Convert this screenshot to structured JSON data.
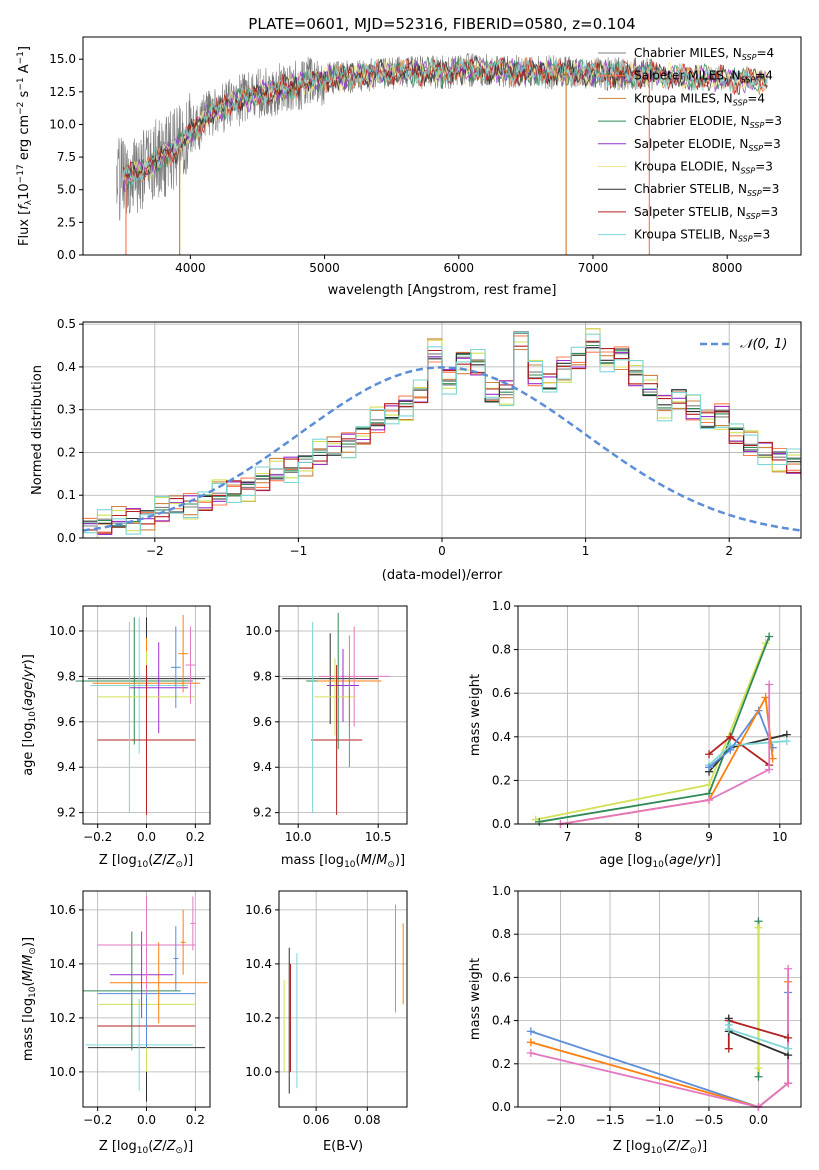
{
  "chart_data": [
    {
      "type": "line",
      "id": "spectrum",
      "title": "PLATE=0601, MJD=52316, FIBERID=0580, z=0.104",
      "xlabel": "wavelength [Angstrom, rest frame]",
      "ylabel": "Flux [f_λ10^-17 erg cm^-2 s^-1 A^-1]",
      "xlim": [
        3200,
        8550
      ],
      "ylim": [
        0,
        16.7
      ],
      "xticks": [
        4000,
        5000,
        6000,
        7000,
        8000
      ],
      "yticks": [
        0.0,
        2.5,
        5.0,
        7.5,
        10.0,
        12.5,
        15.0
      ],
      "grid": false,
      "legend": "right",
      "continuum": {
        "x": [
          3450,
          3600,
          3750,
          3900,
          4000,
          4150,
          4300,
          4500,
          4700,
          4900,
          5100,
          5300,
          5500,
          5700,
          5900,
          6100,
          6300,
          6500,
          6700,
          6900,
          7100,
          7300,
          7500,
          7700,
          7900,
          8100,
          8300
        ],
        "y": [
          5.8,
          6.3,
          7.2,
          8.2,
          9.4,
          10.8,
          11.6,
          12.3,
          12.8,
          13.3,
          13.6,
          13.8,
          13.9,
          14.0,
          14.0,
          14.2,
          14.1,
          14.0,
          14.0,
          14.0,
          13.9,
          13.8,
          13.8,
          13.6,
          13.5,
          13.4,
          13.4
        ]
      },
      "observed_x_range": [
        3450,
        7460
      ],
      "model_x_range": [
        3500,
        8300
      ],
      "series": [
        {
          "name": "Chabrier MILES, N_SSP=4",
          "color": "#808080"
        },
        {
          "name": "Salpeter MILES, N_SSP=4",
          "color": "#ff7f50"
        },
        {
          "name": "Kroupa MILES, N_SSP=4",
          "color": "#cd853f"
        },
        {
          "name": "Chabrier ELODIE, N_SSP=3",
          "color": "#2e8b57"
        },
        {
          "name": "Salpeter ELODIE, N_SSP=3",
          "color": "#9932cc"
        },
        {
          "name": "Kroupa ELODIE, N_SSP=3",
          "color": "#f0e68c"
        },
        {
          "name": "Chabrier STELIB, N_SSP=3",
          "color": "#2f2f2f"
        },
        {
          "name": "Salpeter STELIB, N_SSP=3",
          "color": "#b22222"
        },
        {
          "name": "Kroupa STELIB, N_SSP=3",
          "color": "#7fd6d6"
        }
      ]
    },
    {
      "type": "line",
      "id": "residuals",
      "xlabel": "(data-model)/error",
      "ylabel": "Normed distribution",
      "xlim": [
        -2.5,
        2.5
      ],
      "ylim": [
        0,
        0.505
      ],
      "xticks": [
        -2,
        -1,
        0,
        1,
        2
      ],
      "yticks": [
        0.0,
        0.1,
        0.2,
        0.3,
        0.4,
        0.5
      ],
      "grid": true,
      "legend": "top-right",
      "gaussian_label": "𝒩(0, 1)",
      "gaussian_color": "#5b8dd9",
      "bin_width": 0.1,
      "bin_start": -2.5,
      "base_hist": [
        0.028,
        0.032,
        0.038,
        0.045,
        0.052,
        0.062,
        0.07,
        0.08,
        0.088,
        0.1,
        0.11,
        0.12,
        0.134,
        0.15,
        0.165,
        0.18,
        0.195,
        0.205,
        0.222,
        0.245,
        0.27,
        0.29,
        0.31,
        0.34,
        0.43,
        0.37,
        0.42,
        0.405,
        0.33,
        0.345,
        0.47,
        0.38,
        0.36,
        0.4,
        0.42,
        0.455,
        0.42,
        0.43,
        0.38,
        0.345,
        0.31,
        0.335,
        0.3,
        0.27,
        0.29,
        0.245,
        0.215,
        0.2,
        0.19,
        0.175,
        0.15,
        0.14,
        0.125,
        0.12,
        0.1,
        0.085,
        0.075,
        0.065,
        0.055,
        0.045,
        0.07,
        0.05,
        0.04,
        0.035,
        0.03,
        0.028,
        0.025,
        0.02,
        0.018,
        0.015
      ],
      "hist_colors": [
        "#808080",
        "#ff7f50",
        "#cd853f",
        "#2e8b57",
        "#9932cc",
        "#d4e157",
        "#2f2f2f",
        "#b22222",
        "#7fd6d6"
      ]
    },
    {
      "type": "scatter",
      "id": "age-vs-z",
      "xlabel": "Z [log10(Z/Z⊙)]",
      "ylabel": "age [log10(age/yr)]",
      "xlim": [
        -0.26,
        0.26
      ],
      "ylim": [
        9.15,
        10.11
      ],
      "xticks": [
        -0.2,
        0.0,
        0.2
      ],
      "yticks": [
        9.2,
        9.4,
        9.6,
        9.8,
        10.0
      ],
      "grid": true,
      "errorbars": [
        {
          "x": 0.0,
          "xerr": 0.24,
          "y": 9.79,
          "yerr": 0.27,
          "color": "#2f2f2f"
        },
        {
          "x": -0.05,
          "xerr": 0.24,
          "y": 9.78,
          "yerr": 0.28,
          "color": "#2e8b57"
        },
        {
          "x": 0.0,
          "xerr": 0.22,
          "y": 9.77,
          "yerr": 0.2,
          "color": "#ff7f0e"
        },
        {
          "x": -0.03,
          "xerr": 0.2,
          "y": 9.76,
          "yerr": 0.3,
          "color": "#7fd6d6"
        },
        {
          "x": 0.05,
          "xerr": 0.12,
          "y": 9.75,
          "yerr": 0.2,
          "color": "#9932cc"
        },
        {
          "x": 0.0,
          "xerr": 0.2,
          "y": 9.71,
          "yerr": 0.2,
          "color": "#d4e157"
        },
        {
          "x": 0.0,
          "xerr": 0.2,
          "y": 9.52,
          "yerr": 0.33,
          "color": "#b22222"
        },
        {
          "x": 0.12,
          "xerr": 0.02,
          "y": 9.84,
          "yerr": 0.18,
          "color": "#5b8dd9"
        },
        {
          "x": 0.15,
          "xerr": 0.02,
          "y": 9.9,
          "yerr": 0.17,
          "color": "#ff7f0e"
        },
        {
          "x": 0.18,
          "xerr": 0.02,
          "y": 9.85,
          "yerr": 0.17,
          "color": "#e377c2"
        },
        {
          "x": -0.07,
          "xerr": 0.0,
          "y": 9.62,
          "yerr": 0.42,
          "color": "#7fd6d6"
        }
      ]
    },
    {
      "type": "scatter",
      "id": "age-vs-mass",
      "xlabel": "mass [log10(M/M⊙)]",
      "xlim": [
        9.88,
        10.68
      ],
      "ylim": [
        9.15,
        10.11
      ],
      "xticks": [
        10.0,
        10.5
      ],
      "yticks": [
        9.2,
        9.4,
        9.6,
        9.8,
        10.0
      ],
      "grid": true,
      "errorbars": [
        {
          "x": 10.2,
          "xerr": 0.3,
          "y": 9.79,
          "yerr": 0.2,
          "color": "#2f2f2f"
        },
        {
          "x": 10.25,
          "xerr": 0.2,
          "y": 9.78,
          "yerr": 0.3,
          "color": "#2e8b57"
        },
        {
          "x": 10.32,
          "xerr": 0.2,
          "y": 9.78,
          "yerr": 0.2,
          "color": "#ff7f0e"
        },
        {
          "x": 10.35,
          "xerr": 0.22,
          "y": 9.8,
          "yerr": 0.22,
          "color": "#e377c2"
        },
        {
          "x": 10.28,
          "xerr": 0.1,
          "y": 9.76,
          "yerr": 0.16,
          "color": "#9932cc"
        },
        {
          "x": 10.23,
          "xerr": 0.13,
          "y": 9.71,
          "yerr": 0.17,
          "color": "#d4e157"
        },
        {
          "x": 10.24,
          "xerr": 0.16,
          "y": 9.52,
          "yerr": 0.33,
          "color": "#b22222"
        },
        {
          "x": 10.09,
          "xerr": 0.0,
          "y": 9.62,
          "yerr": 0.42,
          "color": "#7fd6d6"
        },
        {
          "x": 10.32,
          "xerr": 0.0,
          "y": 9.6,
          "yerr": 0.2,
          "color": "#5b8dd9"
        }
      ]
    },
    {
      "type": "line",
      "id": "massweight-vs-age",
      "xlabel": "age [log10(age/yr)]",
      "ylabel": "mass weight",
      "xlim": [
        6.3,
        10.3
      ],
      "ylim": [
        0,
        1
      ],
      "xticks": [
        7,
        8,
        9,
        10
      ],
      "yticks": [
        0.0,
        0.2,
        0.4,
        0.6,
        0.8,
        1.0
      ],
      "grid": true,
      "series": [
        {
          "color": "#d4e157",
          "x": [
            6.55,
            9.0,
            9.8
          ],
          "y": [
            0.02,
            0.18,
            0.83
          ]
        },
        {
          "color": "#2e8b57",
          "x": [
            6.6,
            9.0,
            9.85
          ],
          "y": [
            0.01,
            0.14,
            0.86
          ]
        },
        {
          "color": "#b22222",
          "x": [
            9.0,
            9.3,
            9.85
          ],
          "y": [
            0.32,
            0.4,
            0.27
          ]
        },
        {
          "color": "#2f2f2f",
          "x": [
            9.0,
            9.3,
            10.1
          ],
          "y": [
            0.24,
            0.35,
            0.41
          ]
        },
        {
          "color": "#7fd6d6",
          "x": [
            9.0,
            9.3,
            10.1
          ],
          "y": [
            0.27,
            0.36,
            0.38
          ]
        },
        {
          "color": "#5b8dd9",
          "x": [
            9.0,
            9.3,
            9.7,
            9.9
          ],
          "y": [
            0.26,
            0.34,
            0.52,
            0.35
          ]
        },
        {
          "color": "#ff7f0e",
          "x": [
            6.9,
            9.0,
            9.8,
            9.9
          ],
          "y": [
            0.0,
            0.11,
            0.58,
            0.3
          ]
        },
        {
          "color": "#e377c2",
          "x": [
            6.9,
            9.0,
            9.85,
            9.85
          ],
          "y": [
            0.0,
            0.11,
            0.25,
            0.64
          ]
        }
      ]
    },
    {
      "type": "scatter",
      "id": "mass-vs-z",
      "xlabel": "Z [log10(Z/Z⊙)]",
      "ylabel": "mass [log10(M/M⊙)]",
      "xlim": [
        -0.26,
        0.26
      ],
      "ylim": [
        9.87,
        10.67
      ],
      "xticks": [
        -0.2,
        0.0,
        0.2
      ],
      "yticks": [
        10.0,
        10.2,
        10.4,
        10.6
      ],
      "grid": true,
      "errorbars": [
        {
          "x": 0.0,
          "xerr": 0.24,
          "y": 10.09,
          "yerr": 0.2,
          "color": "#2f2f2f"
        },
        {
          "x": -0.03,
          "xerr": 0.22,
          "y": 10.1,
          "yerr": 0.17,
          "color": "#7fd6d6"
        },
        {
          "x": 0.0,
          "xerr": 0.2,
          "y": 10.17,
          "yerr": 0.1,
          "color": "#b22222"
        },
        {
          "x": 0.0,
          "xerr": 0.2,
          "y": 10.25,
          "yerr": 0.25,
          "color": "#d4e157"
        },
        {
          "x": -0.06,
          "xerr": 0.2,
          "y": 10.3,
          "yerr": 0.22,
          "color": "#2e8b57"
        },
        {
          "x": 0.0,
          "xerr": 0.2,
          "y": 10.29,
          "yerr": 0.2,
          "color": "#5b8dd9"
        },
        {
          "x": 0.05,
          "xerr": 0.2,
          "y": 10.33,
          "yerr": 0.15,
          "color": "#ff7f0e"
        },
        {
          "x": -0.02,
          "xerr": 0.13,
          "y": 10.36,
          "yerr": 0.16,
          "color": "#9932cc"
        },
        {
          "x": 0.0,
          "xerr": 0.2,
          "y": 10.47,
          "yerr": 0.18,
          "color": "#e377c2"
        },
        {
          "x": 0.12,
          "xerr": 0.01,
          "y": 10.42,
          "yerr": 0.12,
          "color": "#5b8dd9"
        },
        {
          "x": 0.15,
          "xerr": 0.01,
          "y": 10.48,
          "yerr": 0.12,
          "color": "#ff7f0e"
        },
        {
          "x": 0.19,
          "xerr": 0.01,
          "y": 10.55,
          "yerr": 0.1,
          "color": "#e377c2"
        }
      ]
    },
    {
      "type": "scatter",
      "id": "mass-vs-ebv",
      "xlabel": "E(B-V)",
      "xlim": [
        0.0455,
        0.0955
      ],
      "ylim": [
        9.87,
        10.67
      ],
      "xticks": [
        0.06,
        0.08
      ],
      "yticks": [
        10.0,
        10.2,
        10.4,
        10.6
      ],
      "grid": true,
      "errorbars": [
        {
          "x": 0.0475,
          "xerr": 0.0,
          "y": 10.17,
          "yerr": 0.17,
          "color": "#d4e157"
        },
        {
          "x": 0.0495,
          "xerr": 0.0,
          "y": 10.19,
          "yerr": 0.27,
          "color": "#2f2f2f"
        },
        {
          "x": 0.05,
          "xerr": 0.0,
          "y": 10.2,
          "yerr": 0.2,
          "color": "#b22222"
        },
        {
          "x": 0.0525,
          "xerr": 0.0,
          "y": 10.19,
          "yerr": 0.25,
          "color": "#7fd6d6"
        },
        {
          "x": 0.091,
          "xerr": 0.0,
          "y": 10.42,
          "yerr": 0.2,
          "color": "#e377c2"
        },
        {
          "x": 0.094,
          "xerr": 0.0,
          "y": 10.4,
          "yerr": 0.15,
          "color": "#ff7f0e"
        }
      ]
    },
    {
      "type": "line",
      "id": "massweight-vs-z",
      "xlabel": "Z [log10(Z/Z⊙)]",
      "ylabel": "mass weight",
      "xlim": [
        -2.43,
        0.43
      ],
      "ylim": [
        0,
        1
      ],
      "xticks": [
        -2.0,
        -1.5,
        -1.0,
        -0.5,
        0.0
      ],
      "yticks": [
        0.0,
        0.2,
        0.4,
        0.6,
        0.8,
        1.0
      ],
      "grid": true,
      "series": [
        {
          "color": "#5b8dd9",
          "x": [
            -2.3,
            0.0,
            0.3,
            0.3
          ],
          "y": [
            0.35,
            0.0,
            0.11,
            0.53
          ]
        },
        {
          "color": "#ff7f0e",
          "x": [
            -2.3,
            0.0,
            0.3,
            0.3
          ],
          "y": [
            0.3,
            0.0,
            0.11,
            0.58
          ]
        },
        {
          "color": "#e377c2",
          "x": [
            -2.3,
            0.0,
            0.3,
            0.3
          ],
          "y": [
            0.25,
            0.0,
            0.11,
            0.64
          ]
        },
        {
          "color": "#2e8b57",
          "x": [
            0.0,
            0.0
          ],
          "y": [
            0.14,
            0.86
          ]
        },
        {
          "color": "#d4e157",
          "x": [
            0.0,
            0.0
          ],
          "y": [
            0.18,
            0.83
          ]
        },
        {
          "color": "#b22222",
          "x": [
            -0.3,
            -0.3,
            0.3
          ],
          "y": [
            0.27,
            0.4,
            0.32
          ]
        },
        {
          "color": "#2f2f2f",
          "x": [
            -0.3,
            -0.3,
            0.3
          ],
          "y": [
            0.41,
            0.35,
            0.24
          ]
        },
        {
          "color": "#7fd6d6",
          "x": [
            -0.3,
            -0.3,
            0.3
          ],
          "y": [
            0.38,
            0.36,
            0.27
          ]
        }
      ]
    }
  ]
}
